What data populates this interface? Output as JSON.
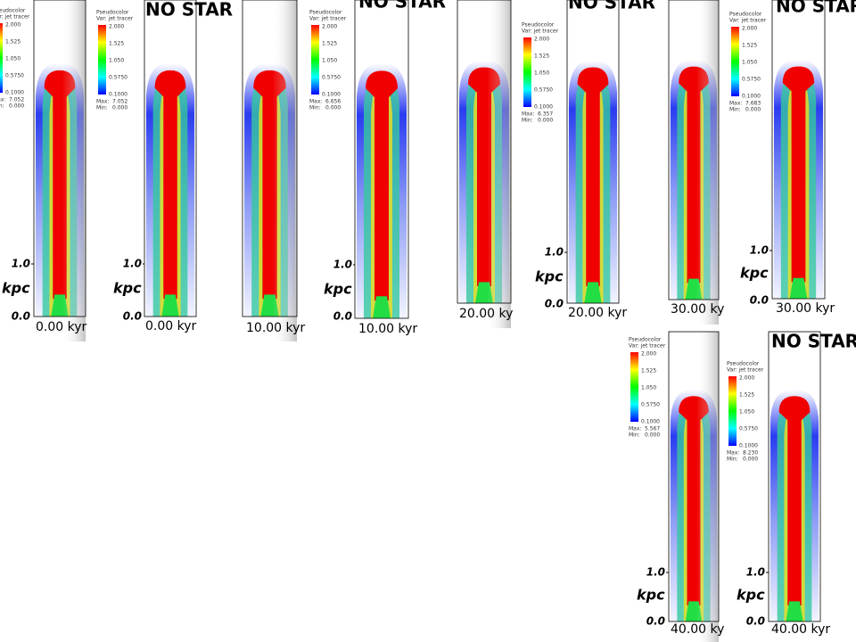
{
  "axis": {
    "upper_tick": "1.0",
    "lower_tick": "0.0",
    "unit": "kpc"
  },
  "colorbar": {
    "heading": "Pseudocolor",
    "variable": "Var: jet tracer",
    "ticks": [
      "2.000",
      "1.525",
      "1.050",
      "0.5750",
      "0.1000"
    ],
    "max_label": "Max:",
    "min_label": "Min:"
  },
  "panels": [
    {
      "time": "0.00 kyr",
      "max": "7.052",
      "min": "0.000"
    },
    {
      "title": "NO STAR",
      "time": "0.00 kyr",
      "max": "7.052",
      "min": "0.000"
    },
    {
      "time": "10.00 kyr"
    },
    {
      "title": "NO STAR",
      "time": "10.00 kyr",
      "max": "6.656",
      "min": "0.000"
    },
    {
      "time": "20.00 ky"
    },
    {
      "title": "NO STAR",
      "time": "20.00 kyr",
      "max": "6.357",
      "min": "0.000"
    },
    {
      "time": "30.00 ky"
    },
    {
      "title": "NO STAR",
      "time": "30.00 kyr",
      "max": "7.683",
      "min": "0.000"
    },
    {
      "time": "40.00 ky",
      "max": "5.567",
      "min": "0.000"
    },
    {
      "title": "NO STAR",
      "time": "40.00 kyr",
      "max": "8.230",
      "min": "0.000"
    }
  ]
}
